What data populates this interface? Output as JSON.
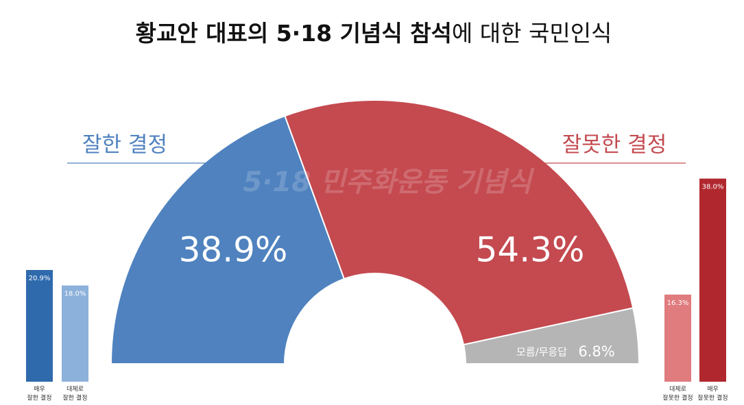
{
  "chart_data": [
    {
      "type": "half-donut",
      "title": {
        "emphasis": "황교안 대표의 5·18 기념식 참석",
        "rest": "에 대한 국민인식"
      },
      "watermark": "5·18 민주화운동 기념식",
      "categories": [
        "잘한 결정",
        "잘못한 결정",
        "모름/무응답"
      ],
      "values": [
        38.9,
        54.3,
        6.8
      ],
      "value_labels": [
        "38.9%",
        "54.3%",
        "6.8%"
      ],
      "colors": [
        "#4f82bf",
        "#c44a50",
        "#b5b5b5"
      ]
    },
    {
      "type": "bar",
      "categories": [
        [
          "매우",
          "잘한 결정"
        ],
        [
          "대체로",
          "잘한 결정"
        ]
      ],
      "values": [
        20.9,
        18.0
      ],
      "value_labels": [
        "20.9%",
        "18.0%"
      ],
      "colors": [
        "#2f6aad",
        "#8cb1da"
      ]
    },
    {
      "type": "bar",
      "categories": [
        [
          "대체로",
          "잘못한 결정"
        ],
        [
          "매우",
          "잘못한 결정"
        ]
      ],
      "values": [
        16.3,
        38.0
      ],
      "value_labels": [
        "16.3%",
        "38.0%"
      ],
      "colors": [
        "#e07b7e",
        "#b0282e"
      ]
    }
  ]
}
